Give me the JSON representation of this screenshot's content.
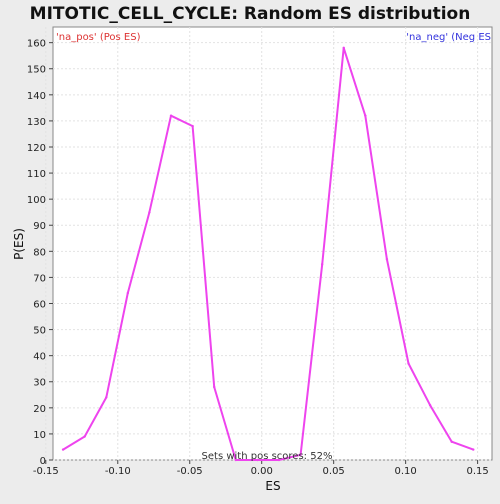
{
  "chart_data": {
    "type": "line",
    "title": "MITOTIC_CELL_CYCLE: Random ES distribution",
    "xlabel": "ES",
    "ylabel": "P(ES)",
    "xlim": [
      -0.145,
      0.16
    ],
    "ylim": [
      0,
      166
    ],
    "x_ticks": [
      -0.15,
      -0.1,
      -0.05,
      0.0,
      0.05,
      0.1,
      0.15
    ],
    "x_tick_labels": [
      "-0.15",
      "-0.10",
      "-0.05",
      "0.00",
      "0.05",
      "0.10",
      "0.15"
    ],
    "y_ticks": [
      0,
      10,
      20,
      30,
      40,
      50,
      60,
      70,
      80,
      90,
      100,
      110,
      120,
      130,
      140,
      150,
      160
    ],
    "y_tick_labels": [
      "0",
      "10",
      "20",
      "30",
      "40",
      "50",
      "60",
      "70",
      "80",
      "90",
      "100",
      "110",
      "120",
      "130",
      "140",
      "150",
      "160"
    ],
    "grid": true,
    "line_color": "#ee44ee",
    "series": [
      {
        "values": [
          [
            -0.138,
            4
          ],
          [
            -0.123,
            9
          ],
          [
            -0.108,
            24
          ],
          [
            -0.093,
            64
          ],
          [
            -0.078,
            95
          ],
          [
            -0.063,
            132
          ],
          [
            -0.048,
            128
          ],
          [
            -0.033,
            28
          ],
          [
            -0.018,
            0
          ],
          [
            -0.003,
            0
          ],
          [
            0.012,
            0
          ],
          [
            0.027,
            2
          ],
          [
            0.042,
            75
          ],
          [
            0.057,
            158
          ],
          [
            0.072,
            132
          ],
          [
            0.087,
            77
          ],
          [
            0.102,
            37
          ],
          [
            0.117,
            21
          ],
          [
            0.132,
            7
          ],
          [
            0.147,
            4
          ]
        ]
      }
    ],
    "annotations": {
      "pos_label": "'na_pos' (Pos ES)",
      "pos_color": "#dd3333",
      "neg_label": "'na_neg' (Neg ES",
      "neg_color": "#3333dd",
      "footer": "Sets with pos scores: 52%"
    }
  }
}
